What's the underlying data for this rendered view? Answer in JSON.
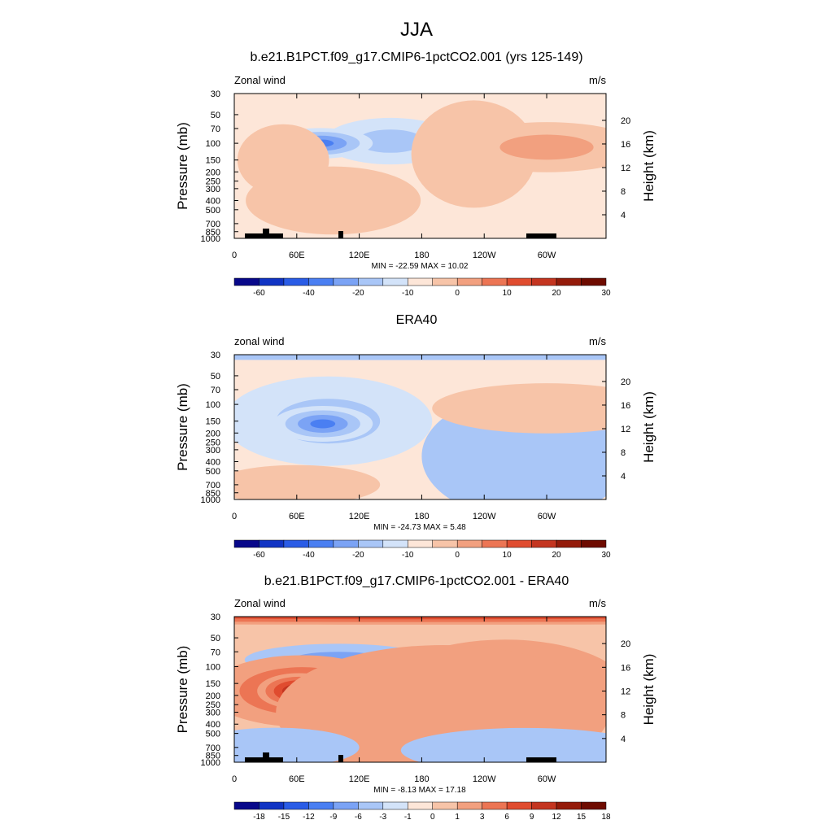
{
  "figure": {
    "title": "JJA"
  },
  "colors": {
    "palette": [
      "#08088a",
      "#1134c4",
      "#2a5ce6",
      "#4a7ff2",
      "#7ba3f5",
      "#a9c6f7",
      "#d3e3f9",
      "#fde6d8",
      "#f7c4a8",
      "#f2a07f",
      "#ec7554",
      "#e04c2f",
      "#c43520",
      "#941b0a",
      "#6e0b00"
    ]
  },
  "chart_data": [
    {
      "type": "heatmap",
      "title": "b.e21.B1PCT.f09_g17.CMIP6-1pctCO2.001 (yrs 125-149)",
      "left_label": "Zonal wind",
      "right_label": "m/s",
      "ylabel": "Pressure (mb)",
      "y2label": "Height (km)",
      "xlabel": "",
      "x_ticks": [
        "0",
        "60E",
        "120E",
        "180",
        "120W",
        "60W"
      ],
      "x_range": [
        0,
        357
      ],
      "y_ticks": [
        "30",
        "50",
        "70",
        "100",
        "150",
        "200",
        "250",
        "300",
        "400",
        "500",
        "700",
        "850",
        "1000"
      ],
      "y_range": [
        1000,
        30
      ],
      "y_scale": "log",
      "y2_ticks": [
        "20",
        "16",
        "12",
        "8",
        "4"
      ],
      "min_max": "MIN = -22.59  MAX =  10.02",
      "colorbar_ticks": [
        "-60",
        "-40",
        "-20",
        "-10",
        "0",
        "10",
        "20",
        "30"
      ],
      "blobs": [
        {
          "lon": 150,
          "p": 95,
          "v": -8,
          "rx": 32,
          "ry": 26
        },
        {
          "lon": 83,
          "p": 100,
          "v": -20,
          "rx": 25,
          "ry": 17
        },
        {
          "lon": 47,
          "p": 150,
          "v": 2,
          "rx": 22,
          "ry": 40
        },
        {
          "lon": 95,
          "p": 400,
          "v": 3,
          "rx": 42,
          "ry": 38
        },
        {
          "lon": 230,
          "p": 130,
          "v": 2,
          "rx": 30,
          "ry": 60
        },
        {
          "lon": 300,
          "p": 110,
          "v": 8,
          "rx": 45,
          "ry": 28
        }
      ]
    },
    {
      "type": "heatmap",
      "title": "ERA40",
      "left_label": "zonal wind",
      "right_label": "m/s",
      "ylabel": "Pressure (mb)",
      "y2label": "Height (km)",
      "xlabel": "",
      "x_ticks": [
        "0",
        "60E",
        "120E",
        "180",
        "120W",
        "60W"
      ],
      "x_range": [
        0,
        357
      ],
      "y_ticks": [
        "30",
        "50",
        "70",
        "100",
        "150",
        "200",
        "250",
        "300",
        "400",
        "500",
        "700",
        "850",
        "1000"
      ],
      "y_range": [
        1000,
        30
      ],
      "y_scale": "log",
      "y2_ticks": [
        "20",
        "16",
        "12",
        "8",
        "4"
      ],
      "min_max": "MIN = -24.73  MAX =   5.48",
      "colorbar_ticks": [
        "-60",
        "-40",
        "-20",
        "-10",
        "0",
        "10",
        "20",
        "30"
      ],
      "blobs": [
        {
          "lon": 180,
          "p": 30,
          "v": -6,
          "rx": 400,
          "ry": 6
        },
        {
          "lon": 90,
          "p": 150,
          "v": -8,
          "rx": 50,
          "ry": 50
        },
        {
          "lon": 85,
          "p": 160,
          "v": -20,
          "rx": 24,
          "ry": 20
        },
        {
          "lon": 280,
          "p": 350,
          "v": -6,
          "rx": 50,
          "ry": 70
        },
        {
          "lon": 300,
          "p": 110,
          "v": 4,
          "rx": 55,
          "ry": 28
        },
        {
          "lon": 60,
          "p": 700,
          "v": 3,
          "rx": 40,
          "ry": 22
        }
      ]
    },
    {
      "type": "heatmap",
      "title": "b.e21.B1PCT.f09_g17.CMIP6-1pctCO2.001 - ERA40",
      "left_label": "Zonal wind",
      "right_label": "m/s",
      "ylabel": "Pressure (mb)",
      "y2label": "Height (km)",
      "xlabel": "",
      "x_ticks": [
        "0",
        "60E",
        "120E",
        "180",
        "120W",
        "60W"
      ],
      "x_range": [
        0,
        357
      ],
      "y_ticks": [
        "30",
        "50",
        "70",
        "100",
        "150",
        "200",
        "250",
        "300",
        "400",
        "500",
        "700",
        "850",
        "1000"
      ],
      "y_range": [
        1000,
        30
      ],
      "y_scale": "log",
      "y2_ticks": [
        "20",
        "16",
        "12",
        "8",
        "4"
      ],
      "min_max": "MIN =  -8.13  MAX =  17.18",
      "colorbar_ticks": [
        "-18",
        "-15",
        "-12",
        "-9",
        "-6",
        "-3",
        "-1",
        "0",
        "1",
        "3",
        "6",
        "9",
        "12",
        "15",
        "18"
      ],
      "blobs": [
        {
          "lon": 180,
          "p": 30,
          "v": 9,
          "rx": 400,
          "ry": 9
        },
        {
          "lon": 100,
          "p": 85,
          "v": -6,
          "rx": 45,
          "ry": 18
        },
        {
          "lon": 65,
          "p": 180,
          "v": 9,
          "rx": 45,
          "ry": 40
        },
        {
          "lon": 62,
          "p": 180,
          "v": 16,
          "rx": 20,
          "ry": 20
        },
        {
          "lon": 260,
          "p": 190,
          "v": 6,
          "rx": 60,
          "ry": 60
        },
        {
          "lon": 200,
          "p": 300,
          "v": 3,
          "rx": 80,
          "ry": 75
        },
        {
          "lon": 280,
          "p": 750,
          "v": -3,
          "rx": 60,
          "ry": 25
        },
        {
          "lon": 40,
          "p": 700,
          "v": -3,
          "rx": 40,
          "ry": 22
        }
      ]
    }
  ]
}
